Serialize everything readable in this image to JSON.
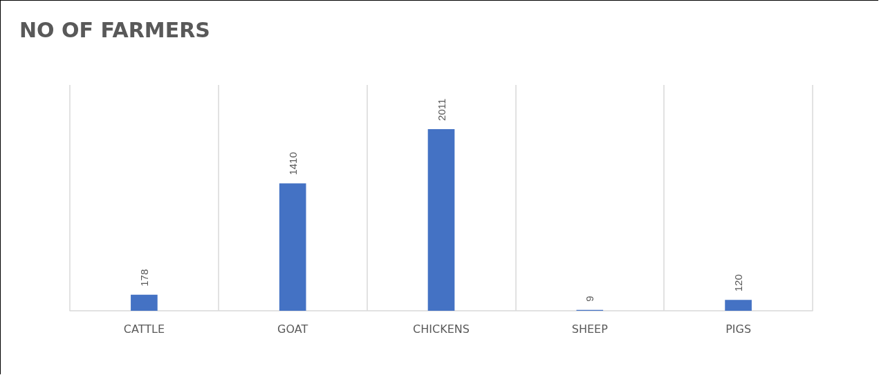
{
  "chart_data": {
    "type": "bar",
    "title": "NO OF FARMERS",
    "categories": [
      "CATTLE",
      "GOAT",
      "CHICKENS",
      "SHEEP",
      "PIGS"
    ],
    "values": [
      178,
      1410,
      2011,
      9,
      120
    ],
    "color": "#4472c4",
    "data_labels": true,
    "tick_labels": "x",
    "grid": "x"
  }
}
